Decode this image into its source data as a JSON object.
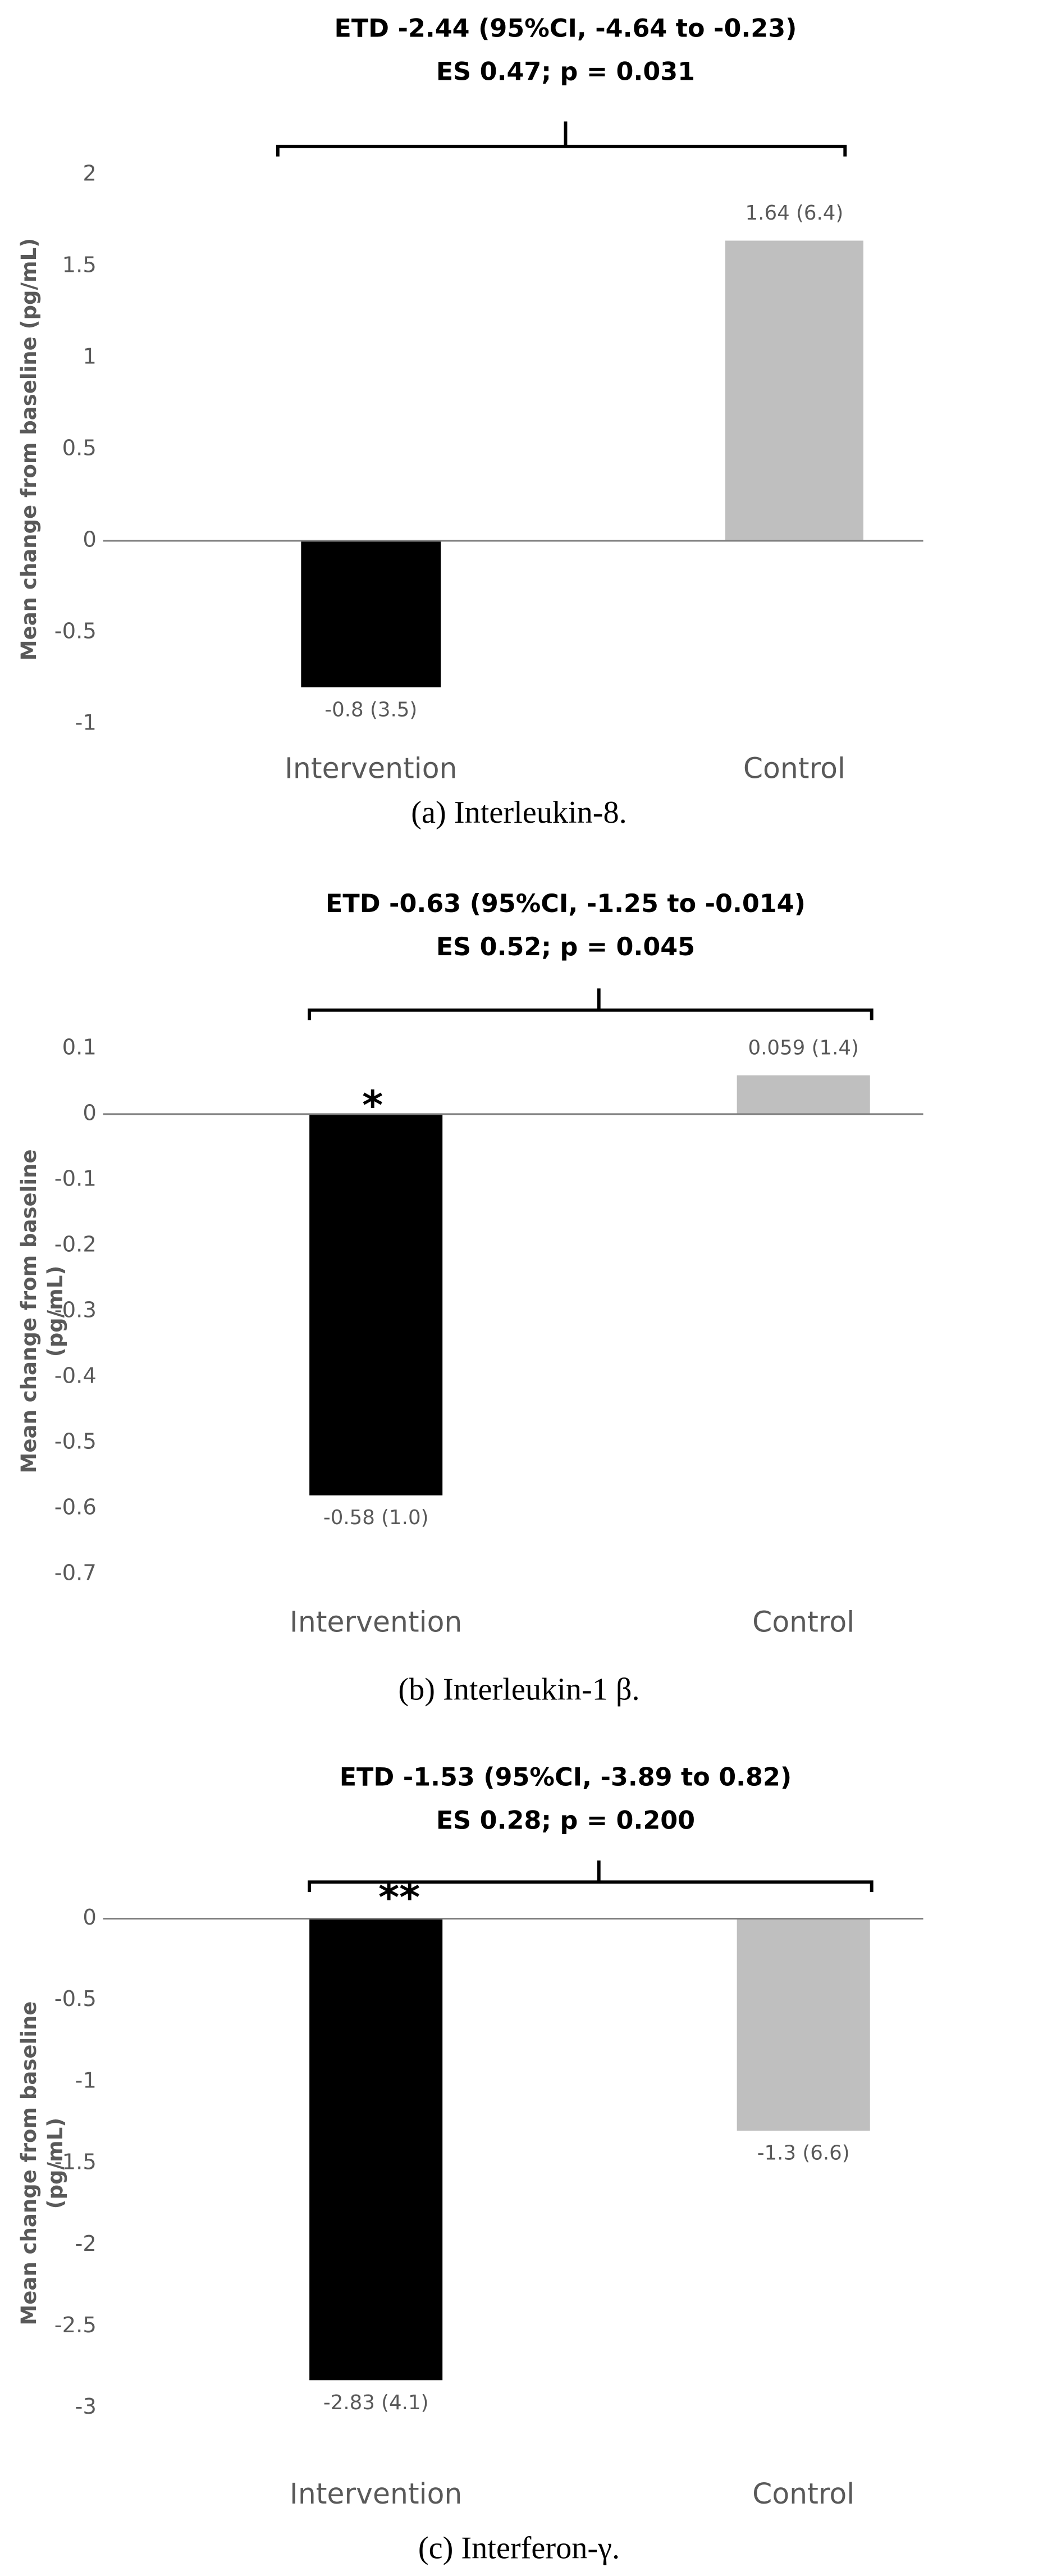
{
  "chart_data": [
    {
      "type": "bar",
      "title": [
        "ETD -2.44 (95%CI, -4.64 to -0.23)",
        "ES 0.47; p = 0.031"
      ],
      "y_label": [
        "Mean change from baseline (pg/mL)"
      ],
      "categories": [
        "Intervention",
        "Control"
      ],
      "values": [
        -0.8,
        1.64
      ],
      "value_labels": [
        "-0.8 (3.5)",
        "1.64 (6.4)"
      ],
      "colors": [
        "#000000",
        "#bfbfbf"
      ],
      "ylim": [
        -1,
        2
      ],
      "yticks": [
        -1,
        -0.5,
        0,
        0.5,
        1,
        1.5,
        2
      ],
      "caption": "(a) Interleukin-8."
    },
    {
      "type": "bar",
      "title": [
        "ETD -0.63 (95%CI, -1.25 to -0.014)",
        "ES 0.52; p = 0.045"
      ],
      "y_label": [
        "Mean change from baseline",
        "(pg/mL)"
      ],
      "categories": [
        "Intervention",
        "Control"
      ],
      "values": [
        -0.58,
        0.059
      ],
      "value_labels": [
        "-0.58 (1.0)",
        "0.059 (1.4)"
      ],
      "colors": [
        "#000000",
        "#bfbfbf"
      ],
      "ylim": [
        -0.7,
        0.1
      ],
      "yticks": [
        -0.7,
        -0.6,
        -0.5,
        -0.4,
        -0.3,
        -0.2,
        -0.1,
        0,
        0.1
      ],
      "marker": "*",
      "caption": "(b) Interleukin-1 β."
    },
    {
      "type": "bar",
      "title": [
        "ETD -1.53 (95%CI, -3.89 to 0.82)",
        "ES 0.28; p = 0.200"
      ],
      "y_label": [
        "Mean change from baseline",
        "(pg/mL)"
      ],
      "categories": [
        "Intervention",
        "Control"
      ],
      "values": [
        -2.83,
        -1.3
      ],
      "value_labels": [
        "-2.83 (4.1)",
        "-1.3 (6.6)"
      ],
      "colors": [
        "#000000",
        "#bfbfbf"
      ],
      "ylim": [
        -3,
        0
      ],
      "yticks": [
        -3,
        -2.5,
        -2,
        -1.5,
        -1,
        -0.5,
        0
      ],
      "marker": "**",
      "caption": "(c) Interferon-γ."
    }
  ]
}
